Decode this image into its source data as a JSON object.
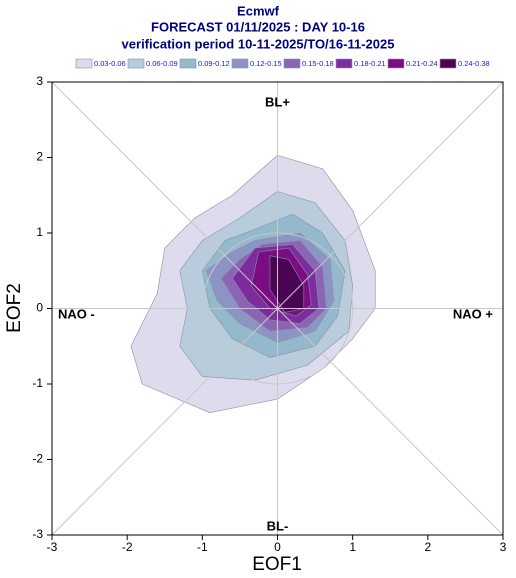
{
  "chart_data": {
    "type": "contour",
    "title": "Ecmwf",
    "subtitle": "FORECAST 01/11/2025 : DAY 10-16",
    "subtitle2": "verification period 10-11-2025/TO/16-11-2025",
    "x_label": "EOF1",
    "y_label": "EOF2",
    "xlim": [
      -3,
      3
    ],
    "ylim": [
      -3,
      3
    ],
    "xticks": [
      -3,
      -2,
      -1,
      0,
      1,
      2,
      3
    ],
    "yticks": [
      -3,
      -2,
      -1,
      0,
      1,
      2,
      3
    ],
    "annotations": [
      "BL+",
      "BL-",
      "NAO -",
      "NAO +"
    ],
    "series": [
      {
        "name": "0.03-0.06",
        "color": "#dcdcec",
        "x": [
          -0.6,
          0,
          0.6,
          1.0,
          1.3,
          1.3,
          1.0,
          0.6,
          0.0,
          -0.9,
          -1.8,
          -1.95,
          -1.6,
          -1.5,
          -1.1
        ],
        "y": [
          1.5,
          2.03,
          1.85,
          1.3,
          0.5,
          0,
          -0.4,
          -0.8,
          -1.2,
          -1.38,
          -1.0,
          -0.5,
          0.2,
          0.8,
          1.2
        ]
      },
      {
        "name": "0.06-0.09",
        "color": "#b8ccdc",
        "x": [
          -0.5,
          0,
          0.5,
          0.9,
          1.0,
          0.95,
          0.4,
          -0.3,
          -1.0,
          -1.3,
          -1.2,
          -1.3,
          -1.0
        ],
        "y": [
          1.2,
          1.55,
          1.4,
          0.9,
          0.3,
          -0.3,
          -0.75,
          -0.95,
          -0.9,
          -0.5,
          0,
          0.5,
          0.9
        ]
      },
      {
        "name": "0.09-0.12",
        "color": "#94b8cc",
        "x": [
          -0.3,
          0.2,
          0.6,
          0.9,
          0.8,
          0.5,
          -0.1,
          -0.6,
          -0.9,
          -1.0,
          -0.7
        ],
        "y": [
          1.05,
          1.25,
          1.0,
          0.5,
          -0.1,
          -0.5,
          -0.65,
          -0.4,
          0,
          0.5,
          0.9
        ]
      },
      {
        "name": "0.12-0.15",
        "color": "#8c94c4",
        "x": [
          -0.3,
          0.3,
          0.7,
          0.75,
          0.5,
          0,
          -0.5,
          -0.8,
          -0.95,
          -0.6
        ],
        "y": [
          0.9,
          1.0,
          0.65,
          0.1,
          -0.3,
          -0.45,
          -0.2,
          0.1,
          0.5,
          0.75
        ]
      },
      {
        "name": "0.15-0.18",
        "color": "#8c64b4",
        "x": [
          -0.2,
          0.3,
          0.6,
          0.65,
          0.4,
          -0.1,
          -0.5,
          -0.75,
          -0.5
        ],
        "y": [
          0.85,
          0.9,
          0.55,
          0,
          -0.25,
          -0.3,
          0,
          0.4,
          0.65
        ]
      },
      {
        "name": "0.18-0.21",
        "color": "#7c2c9c",
        "x": [
          -0.3,
          0.2,
          0.5,
          0.55,
          0.3,
          -0.1,
          -0.4,
          -0.6
        ],
        "y": [
          0.8,
          0.85,
          0.5,
          0,
          -0.2,
          -0.15,
          0.1,
          0.4
        ]
      },
      {
        "name": "0.21-0.24",
        "color": "#7c0c84",
        "x": [
          -0.25,
          0.15,
          0.4,
          0.45,
          0.25,
          -0.1,
          -0.35
        ],
        "y": [
          0.75,
          0.8,
          0.45,
          0.05,
          -0.1,
          0,
          0.3
        ]
      },
      {
        "name": "0.24-0.38",
        "color": "#4c0454",
        "x": [
          -0.1,
          0.15,
          0.35,
          0.35,
          0.1,
          -0.1
        ],
        "y": [
          0.7,
          0.65,
          0.3,
          0,
          -0.05,
          0.25
        ]
      }
    ]
  }
}
